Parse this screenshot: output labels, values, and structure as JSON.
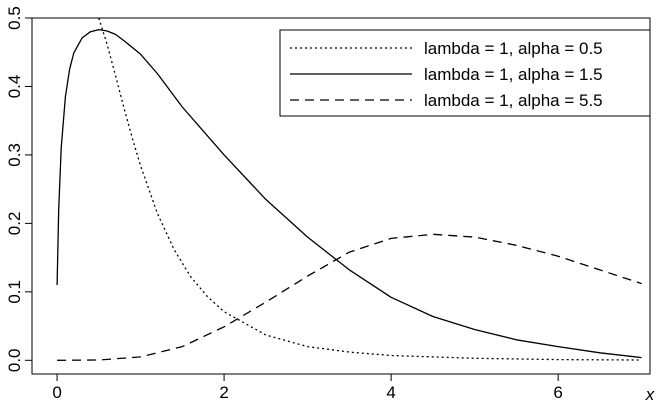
{
  "chart_data": {
    "type": "line",
    "title": "",
    "xlabel": "x",
    "ylabel": "",
    "xlim": [
      -0.3,
      7.1
    ],
    "ylim": [
      -0.02,
      0.5
    ],
    "x_ticks": [
      0,
      2,
      4,
      6
    ],
    "y_ticks": [
      0.0,
      0.1,
      0.2,
      0.3,
      0.4,
      0.5
    ],
    "x_tick_labels": [
      "0",
      "2",
      "4",
      "6"
    ],
    "y_tick_labels": [
      "0.0",
      "0.1",
      "0.2",
      "0.3",
      "0.4",
      "0.5"
    ],
    "grid": false,
    "legend_position": "top-right",
    "series": [
      {
        "name": "lambda = 1, alpha = 0.5",
        "line_style": "dotted",
        "color": "#000000",
        "x": [
          0.5,
          0.6,
          0.7,
          0.8,
          0.9,
          1.0,
          1.2,
          1.4,
          1.6,
          1.8,
          2.0,
          2.5,
          3.0,
          3.5,
          4.0,
          5.0,
          6.0,
          7.0
        ],
        "y": [
          0.5,
          0.461,
          0.416,
          0.369,
          0.325,
          0.284,
          0.215,
          0.162,
          0.122,
          0.093,
          0.071,
          0.037,
          0.02,
          0.012,
          0.007,
          0.003,
          0.001,
          0.0005
        ]
      },
      {
        "name": "lambda = 1, alpha = 1.5",
        "line_style": "solid",
        "color": "#000000",
        "x": [
          0.0,
          0.02,
          0.05,
          0.1,
          0.15,
          0.2,
          0.3,
          0.4,
          0.5,
          0.6,
          0.7,
          0.8,
          1.0,
          1.2,
          1.5,
          2.0,
          2.5,
          3.0,
          3.5,
          4.0,
          4.5,
          5.0,
          5.5,
          6.0,
          6.5,
          7.0
        ],
        "y": [
          0.11,
          0.22,
          0.31,
          0.385,
          0.425,
          0.449,
          0.471,
          0.48,
          0.483,
          0.481,
          0.476,
          0.467,
          0.447,
          0.419,
          0.37,
          0.3,
          0.235,
          0.18,
          0.132,
          0.092,
          0.064,
          0.045,
          0.03,
          0.02,
          0.011,
          0.004
        ]
      },
      {
        "name": "lambda = 1, alpha = 5.5",
        "line_style": "dashed",
        "color": "#000000",
        "x": [
          0.0,
          0.5,
          1.0,
          1.5,
          2.0,
          2.5,
          3.0,
          3.5,
          4.0,
          4.5,
          5.0,
          5.5,
          6.0,
          6.5,
          7.0
        ],
        "y": [
          0.0,
          0.0005,
          0.005,
          0.02,
          0.049,
          0.085,
          0.123,
          0.158,
          0.178,
          0.184,
          0.18,
          0.168,
          0.152,
          0.132,
          0.112
        ]
      }
    ]
  }
}
